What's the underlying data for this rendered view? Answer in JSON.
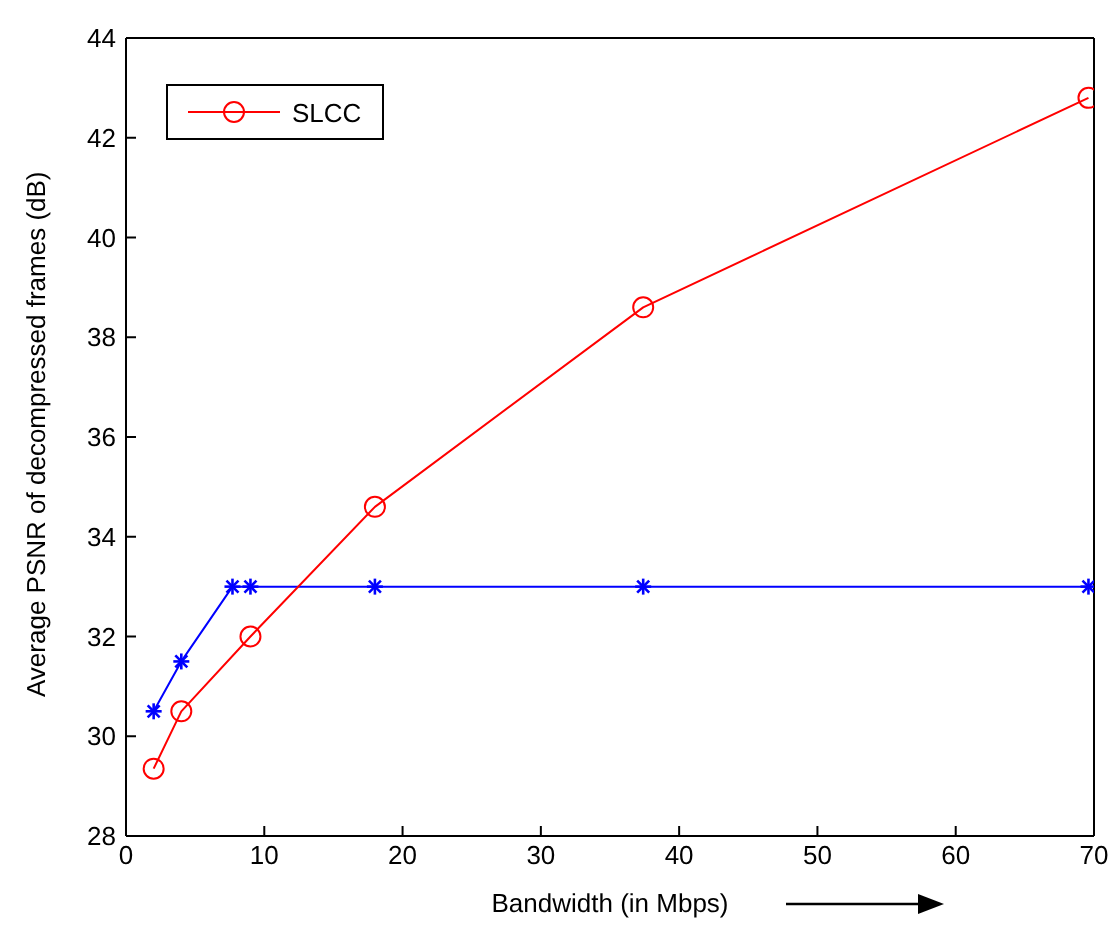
{
  "chart_data": {
    "type": "line",
    "xlabel": "Bandwidth (in Mbps)",
    "ylabel": "Average PSNR of decompressed frames (dB)",
    "xlim": [
      0,
      70
    ],
    "xticks": [
      0,
      10,
      20,
      30,
      40,
      50,
      60,
      70
    ],
    "ylim": [
      28,
      44
    ],
    "yticks": [
      28,
      30,
      32,
      34,
      36,
      38,
      40,
      42,
      44
    ],
    "legend": "top left",
    "line_style": "solid",
    "series": [
      {
        "color": "#0000ff",
        "marker": "cross",
        "x": [
          2,
          4,
          7.7,
          9,
          18,
          37.4,
          69.6
        ],
        "values": [
          30.5,
          31.5,
          33,
          33,
          33,
          33,
          33
        ]
      },
      {
        "name": "SLCC",
        "color": "#ff0000",
        "marker": "circle",
        "x": [
          2,
          4,
          9,
          18,
          37.4,
          69.6
        ],
        "values": [
          29.35,
          30.5,
          32,
          34.6,
          38.6,
          42.8
        ]
      }
    ]
  }
}
